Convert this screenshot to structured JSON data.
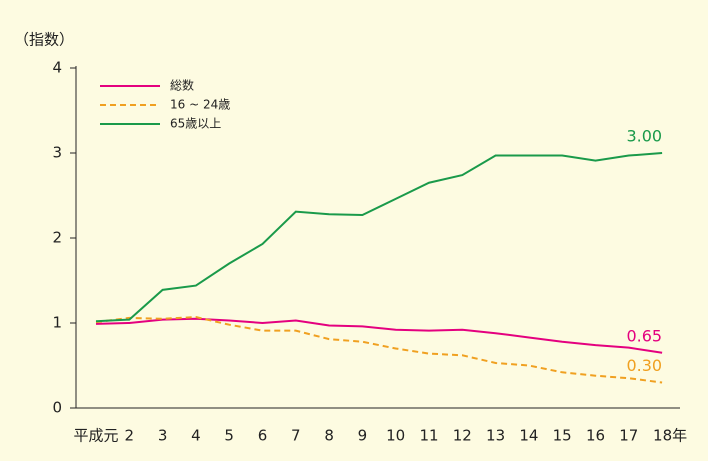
{
  "chart_data": {
    "type": "line",
    "y_label": "（指数）",
    "categories": [
      "平成元",
      "2",
      "3",
      "4",
      "5",
      "6",
      "7",
      "8",
      "9",
      "10",
      "11",
      "12",
      "13",
      "14",
      "15",
      "16",
      "17",
      "18年"
    ],
    "series": [
      {
        "name": "総数",
        "color": "#e4007f",
        "style": "solid",
        "values": [
          0.99,
          1.0,
          1.04,
          1.05,
          1.03,
          1.0,
          1.03,
          0.97,
          0.96,
          0.92,
          0.91,
          0.92,
          0.88,
          0.83,
          0.78,
          0.74,
          0.71,
          0.65
        ],
        "value_labels": [
          null,
          null,
          null,
          null,
          null,
          null,
          null,
          null,
          null,
          null,
          null,
          null,
          null,
          null,
          null,
          null,
          null,
          "0.65"
        ]
      },
      {
        "name": "16 ~ 24歳",
        "color": "#f0a020",
        "style": "dashed",
        "values": [
          1.01,
          1.06,
          1.05,
          1.07,
          0.98,
          0.91,
          0.91,
          0.81,
          0.78,
          0.7,
          0.64,
          0.62,
          0.53,
          0.5,
          0.42,
          0.38,
          0.35,
          0.3
        ],
        "value_labels": [
          null,
          null,
          null,
          null,
          null,
          null,
          null,
          null,
          null,
          null,
          null,
          null,
          null,
          null,
          null,
          null,
          null,
          "0.30"
        ]
      },
      {
        "name": "65歳以上",
        "color": "#1a9a4a",
        "style": "solid",
        "values": [
          1.02,
          1.04,
          1.39,
          1.44,
          1.7,
          1.93,
          2.31,
          2.28,
          2.27,
          2.46,
          2.65,
          2.74,
          2.97,
          2.97,
          2.97,
          2.91,
          2.97,
          3.0
        ],
        "value_labels": [
          null,
          null,
          null,
          null,
          null,
          null,
          null,
          null,
          null,
          null,
          null,
          null,
          null,
          null,
          null,
          null,
          null,
          "3.00"
        ]
      }
    ],
    "ylim": [
      0,
      4
    ],
    "yticks": [
      0,
      1,
      2,
      3,
      4
    ],
    "grid": false,
    "legend": "top-left"
  }
}
